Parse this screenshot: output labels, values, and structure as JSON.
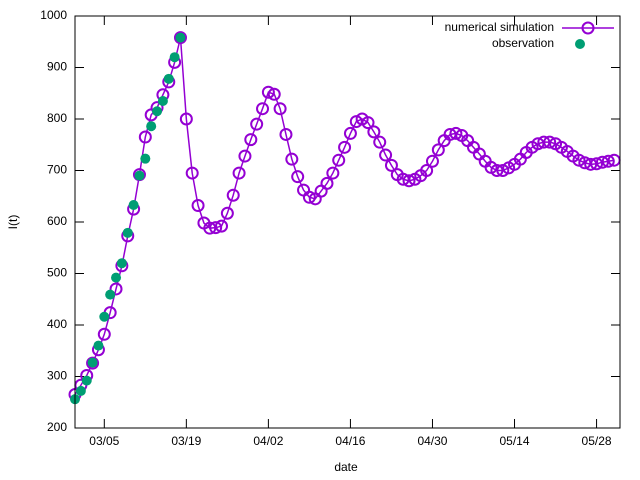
{
  "chart_data": {
    "type": "line",
    "xlabel": "date",
    "ylabel": "I(t)",
    "xlim": [
      "02/29",
      "06/01"
    ],
    "xticks": [
      "03/05",
      "03/19",
      "04/02",
      "04/16",
      "04/30",
      "05/14",
      "05/28"
    ],
    "ylim": [
      200,
      1000
    ],
    "yticks": [
      200,
      300,
      400,
      500,
      600,
      700,
      800,
      900,
      1000
    ],
    "legend": "top-right",
    "series": [
      {
        "name": "numerical simulation",
        "color": "#9400d3",
        "style": "line-open-circle",
        "x": [
          "02/29",
          "03/01",
          "03/02",
          "03/03",
          "03/04",
          "03/05",
          "03/06",
          "03/07",
          "03/08",
          "03/09",
          "03/10",
          "03/11",
          "03/12",
          "03/13",
          "03/14",
          "03/15",
          "03/16",
          "03/17",
          "03/18",
          "03/19",
          "03/20",
          "03/21",
          "03/22",
          "03/23",
          "03/24",
          "03/25",
          "03/26",
          "03/27",
          "03/28",
          "03/29",
          "03/30",
          "03/31",
          "04/01",
          "04/02",
          "04/03",
          "04/04",
          "04/05",
          "04/06",
          "04/07",
          "04/08",
          "04/09",
          "04/10",
          "04/11",
          "04/12",
          "04/13",
          "04/14",
          "04/15",
          "04/16",
          "04/17",
          "04/18",
          "04/19",
          "04/20",
          "04/21",
          "04/22",
          "04/23",
          "04/24",
          "04/25",
          "04/26",
          "04/27",
          "04/28",
          "04/29",
          "04/30",
          "05/01",
          "05/02",
          "05/03",
          "05/04",
          "05/05",
          "05/06",
          "05/07",
          "05/08",
          "05/09",
          "05/10",
          "05/11",
          "05/12",
          "05/13",
          "05/14",
          "05/15",
          "05/16",
          "05/17",
          "05/18",
          "05/19",
          "05/20",
          "05/21",
          "05/22",
          "05/23",
          "05/24",
          "05/25",
          "05/26",
          "05/27",
          "05/28",
          "05/29",
          "05/30",
          "05/31"
        ],
        "values": [
          265,
          283,
          302,
          326,
          352,
          382,
          424,
          470,
          515,
          573,
          625,
          692,
          765,
          808,
          822,
          847,
          872,
          910,
          958,
          800,
          695,
          632,
          598,
          588,
          589,
          592,
          617,
          652,
          695,
          728,
          760,
          790,
          820,
          852,
          848,
          820,
          770,
          722,
          688,
          662,
          648,
          645,
          660,
          675,
          695,
          720,
          745,
          772,
          795,
          800,
          793,
          775,
          755,
          730,
          710,
          692,
          683,
          680,
          683,
          690,
          700,
          718,
          740,
          758,
          770,
          772,
          768,
          758,
          745,
          732,
          718,
          706,
          700,
          700,
          705,
          712,
          722,
          735,
          745,
          752,
          755,
          755,
          752,
          745,
          737,
          728,
          720,
          715,
          712,
          713,
          716,
          718,
          720
        ]
      },
      {
        "name": "observation",
        "color": "#009e73",
        "style": "dot",
        "x": [
          "02/29",
          "03/01",
          "03/02",
          "03/03",
          "03/04",
          "03/05",
          "03/06",
          "03/07",
          "03/08",
          "03/09",
          "03/10",
          "03/11",
          "03/12",
          "03/13",
          "03/14",
          "03/15",
          "03/16",
          "03/17",
          "03/18"
        ],
        "values": [
          256,
          272,
          292,
          327,
          360,
          416,
          459,
          492,
          520,
          579,
          633,
          690,
          723,
          786,
          815,
          835,
          878,
          920,
          958
        ]
      }
    ]
  }
}
